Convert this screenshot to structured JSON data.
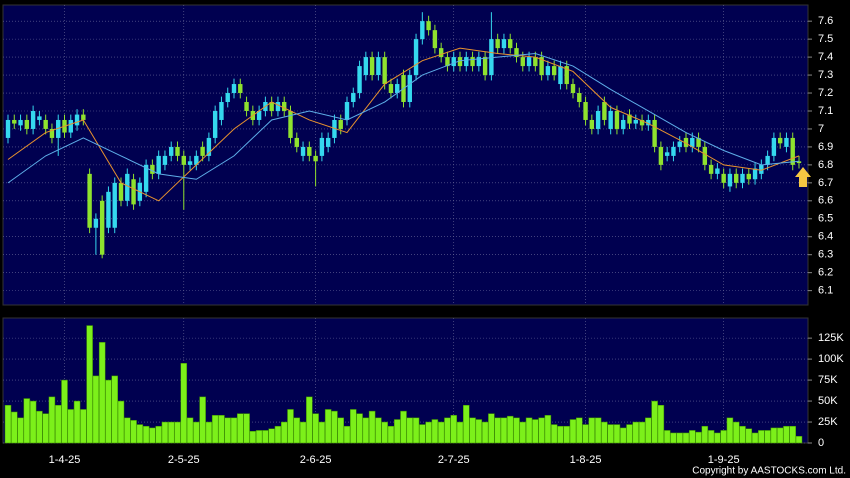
{
  "chart_data": [
    {
      "type": "candlestick",
      "categories": [
        null,
        null,
        null,
        null,
        null,
        null,
        null,
        null,
        null,
        "1-4-25",
        null,
        null,
        null,
        null,
        null,
        null,
        null,
        null,
        null,
        null,
        null,
        null,
        null,
        null,
        null,
        null,
        null,
        null,
        "2-5-25",
        null,
        null,
        null,
        null,
        null,
        null,
        null,
        null,
        null,
        null,
        null,
        null,
        null,
        null,
        null,
        null,
        null,
        null,
        null,
        null,
        "2-6-25",
        null,
        null,
        null,
        null,
        null,
        null,
        null,
        null,
        null,
        null,
        null,
        null,
        null,
        null,
        null,
        null,
        null,
        null,
        null,
        null,
        null,
        "2-7-25",
        null,
        null,
        null,
        null,
        null,
        null,
        null,
        null,
        null,
        null,
        null,
        null,
        null,
        null,
        null,
        null,
        null,
        null,
        null,
        null,
        "1-8-25",
        null,
        null,
        null,
        null,
        null,
        null,
        null,
        null,
        null,
        null,
        null,
        null,
        null,
        null,
        null,
        null,
        null,
        null,
        null,
        null,
        null,
        "1-9-25",
        null,
        null,
        null,
        null,
        null,
        null,
        null,
        null,
        null,
        null,
        null,
        null
      ],
      "open": [
        6.95,
        7.05,
        7.02,
        7.05,
        7.0,
        7.05,
        7.05,
        7.0,
        6.95,
        7.05,
        6.98,
        7.02,
        7.08,
        6.75,
        6.45,
        6.6,
        6.45,
        6.45,
        6.7,
        6.6,
        6.72,
        6.6,
        6.65,
        6.8,
        6.75,
        6.8,
        6.85,
        6.9,
        6.85,
        6.8,
        6.8,
        6.9,
        6.85,
        6.95,
        7.05,
        7.15,
        7.2,
        7.25,
        7.15,
        7.1,
        7.05,
        7.1,
        7.15,
        7.1,
        7.15,
        7.1,
        6.95,
        6.85,
        6.9,
        6.85,
        6.85,
        6.9,
        6.95,
        7.05,
        7.05,
        7.15,
        7.2,
        7.3,
        7.4,
        7.3,
        7.4,
        7.25,
        7.2,
        7.3,
        7.15,
        7.3,
        7.5,
        7.6,
        7.55,
        7.45,
        7.4,
        7.35,
        7.4,
        7.35,
        7.4,
        7.35,
        7.4,
        7.3,
        7.5,
        7.45,
        7.5,
        7.45,
        7.4,
        7.35,
        7.4,
        7.4,
        7.3,
        7.35,
        7.25,
        7.35,
        7.25,
        7.2,
        7.15,
        7.05,
        7.0,
        7.15,
        7.0,
        7.1,
        7.0,
        7.08,
        7.03,
        7.05,
        7.02,
        7.05,
        6.9,
        6.85,
        6.85,
        6.9,
        6.95,
        6.9,
        6.95,
        6.9,
        6.8,
        6.75,
        6.75,
        6.68,
        6.75,
        6.7,
        6.75,
        6.72,
        6.75,
        6.8,
        6.85,
        6.95,
        6.9,
        6.95,
        6.82
      ],
      "high": [
        7.08,
        7.08,
        7.08,
        7.08,
        7.13,
        7.1,
        7.08,
        7.03,
        7.08,
        7.08,
        7.08,
        7.11,
        7.11,
        6.78,
        6.53,
        6.63,
        6.68,
        6.73,
        6.73,
        6.78,
        6.75,
        6.73,
        6.83,
        6.83,
        6.88,
        6.88,
        6.93,
        6.93,
        6.88,
        6.85,
        6.88,
        6.93,
        6.98,
        7.13,
        7.18,
        7.23,
        7.28,
        7.28,
        7.18,
        7.13,
        7.13,
        7.18,
        7.18,
        7.18,
        7.18,
        7.13,
        6.98,
        6.93,
        6.93,
        6.88,
        6.98,
        6.98,
        7.08,
        7.08,
        7.18,
        7.23,
        7.38,
        7.43,
        7.43,
        7.43,
        7.43,
        7.28,
        7.28,
        7.33,
        7.33,
        7.53,
        7.65,
        7.63,
        7.58,
        7.48,
        7.43,
        7.43,
        7.43,
        7.43,
        7.43,
        7.43,
        7.43,
        7.65,
        7.53,
        7.53,
        7.53,
        7.48,
        7.43,
        7.43,
        7.43,
        7.43,
        7.38,
        7.38,
        7.38,
        7.38,
        7.28,
        7.23,
        7.18,
        7.08,
        7.13,
        7.18,
        7.13,
        7.13,
        7.08,
        7.11,
        7.08,
        7.08,
        7.08,
        7.08,
        6.93,
        6.9,
        6.93,
        6.96,
        6.98,
        6.98,
        6.98,
        6.93,
        6.83,
        6.81,
        6.78,
        6.78,
        6.78,
        6.78,
        6.78,
        6.81,
        6.83,
        6.88,
        6.98,
        6.98,
        6.98,
        6.98,
        6.85
      ],
      "low": [
        6.92,
        7.0,
        6.99,
        6.97,
        6.97,
        7.02,
        6.97,
        6.92,
        6.85,
        6.95,
        6.95,
        6.99,
        7.02,
        6.42,
        6.3,
        6.28,
        6.42,
        6.42,
        6.57,
        6.57,
        6.55,
        6.57,
        6.62,
        6.72,
        6.72,
        6.77,
        6.82,
        6.82,
        6.55,
        6.77,
        6.77,
        6.82,
        6.82,
        6.92,
        7.02,
        7.12,
        7.17,
        7.17,
        7.07,
        7.02,
        7.02,
        7.07,
        7.07,
        7.07,
        7.07,
        6.92,
        6.87,
        6.82,
        6.82,
        6.68,
        6.82,
        6.87,
        6.92,
        6.97,
        7.02,
        7.12,
        7.17,
        7.27,
        7.27,
        7.27,
        7.22,
        7.17,
        7.17,
        7.12,
        7.12,
        7.27,
        7.47,
        7.52,
        7.42,
        7.37,
        7.32,
        7.32,
        7.32,
        7.32,
        7.32,
        7.32,
        7.27,
        7.27,
        7.42,
        7.42,
        7.42,
        7.37,
        7.32,
        7.32,
        7.32,
        7.27,
        7.27,
        7.27,
        7.22,
        7.22,
        7.17,
        7.12,
        7.02,
        6.97,
        6.97,
        7.02,
        6.97,
        6.97,
        6.97,
        7.0,
        7.0,
        6.99,
        6.99,
        6.87,
        6.77,
        6.82,
        6.82,
        6.87,
        6.87,
        6.87,
        6.87,
        6.77,
        6.72,
        6.72,
        6.67,
        6.65,
        6.67,
        6.67,
        6.69,
        6.69,
        6.72,
        6.77,
        6.82,
        6.89,
        6.87,
        6.77,
        6.78
      ],
      "close": [
        7.05,
        7.03,
        7.05,
        7.0,
        7.1,
        7.07,
        7.0,
        6.95,
        7.05,
        6.98,
        7.05,
        7.08,
        7.05,
        6.45,
        6.5,
        6.3,
        6.65,
        6.7,
        6.6,
        6.75,
        6.58,
        6.7,
        6.8,
        6.75,
        6.85,
        6.85,
        6.9,
        6.85,
        6.8,
        6.82,
        6.85,
        6.85,
        6.95,
        7.1,
        7.15,
        7.2,
        7.25,
        7.2,
        7.1,
        7.05,
        7.1,
        7.15,
        7.1,
        7.15,
        7.1,
        6.95,
        6.9,
        6.9,
        6.85,
        6.82,
        6.95,
        6.95,
        7.05,
        7.0,
        7.15,
        7.2,
        7.35,
        7.4,
        7.3,
        7.4,
        7.25,
        7.2,
        7.25,
        7.15,
        7.3,
        7.5,
        7.6,
        7.55,
        7.45,
        7.4,
        7.35,
        7.4,
        7.35,
        7.4,
        7.35,
        7.4,
        7.3,
        7.5,
        7.45,
        7.5,
        7.45,
        7.4,
        7.35,
        7.4,
        7.35,
        7.3,
        7.35,
        7.3,
        7.35,
        7.25,
        7.2,
        7.15,
        7.05,
        7.0,
        7.1,
        7.05,
        7.1,
        7.0,
        7.05,
        7.03,
        7.05,
        7.02,
        7.05,
        6.9,
        6.8,
        6.87,
        6.9,
        6.93,
        6.9,
        6.95,
        6.9,
        6.8,
        6.75,
        6.78,
        6.7,
        6.75,
        6.7,
        6.75,
        6.72,
        6.78,
        6.8,
        6.85,
        6.95,
        6.92,
        6.95,
        6.8,
        6.81
      ],
      "up_color": "#35d8ee",
      "down_color": "#8fe22e",
      "series": [
        {
          "color": "#e8922e",
          "x": [
            0,
            6,
            12,
            18,
            24,
            30,
            36,
            42,
            48,
            54,
            60,
            66,
            72,
            78,
            84,
            90,
            96,
            102,
            108,
            114,
            120,
            126
          ],
          "values": [
            6.83,
            6.98,
            7.05,
            6.7,
            6.6,
            6.8,
            7.0,
            7.15,
            7.05,
            6.98,
            7.25,
            7.38,
            7.45,
            7.42,
            7.4,
            7.32,
            7.12,
            7.03,
            6.92,
            6.8,
            6.77,
            6.85
          ]
        },
        {
          "color": "#5eaee8",
          "x": [
            0,
            6,
            12,
            18,
            24,
            30,
            36,
            42,
            48,
            54,
            60,
            66,
            72,
            78,
            84,
            90,
            96,
            102,
            108,
            114,
            120,
            126
          ],
          "values": [
            6.7,
            6.85,
            6.95,
            6.85,
            6.75,
            6.72,
            6.85,
            7.05,
            7.1,
            7.05,
            7.15,
            7.3,
            7.38,
            7.4,
            7.42,
            7.35,
            7.22,
            7.1,
            6.98,
            6.88,
            6.8,
            6.82
          ]
        }
      ],
      "ylim": [
        6.02,
        7.69
      ],
      "yticks": [
        6.1,
        6.2,
        6.3,
        6.4,
        6.5,
        6.6,
        6.7,
        6.8,
        6.9,
        7,
        7.1,
        7.2,
        7.3,
        7.4,
        7.5,
        7.6
      ],
      "grid": true
    },
    {
      "type": "bar",
      "values": [
        45000,
        37000,
        30000,
        53000,
        50000,
        38000,
        35000,
        55000,
        45000,
        75000,
        40000,
        50000,
        40000,
        140000,
        80000,
        120000,
        75000,
        80000,
        50000,
        30000,
        27000,
        22000,
        20000,
        18000,
        20000,
        25000,
        25000,
        25000,
        95000,
        30000,
        25000,
        55000,
        25000,
        33000,
        33000,
        30000,
        30000,
        35000,
        35000,
        14000,
        15000,
        15000,
        17000,
        20000,
        25000,
        40000,
        30000,
        25000,
        55000,
        35000,
        25000,
        40000,
        38000,
        30000,
        20000,
        40000,
        35000,
        30000,
        38000,
        30000,
        25000,
        20000,
        28000,
        38000,
        30000,
        30000,
        22000,
        25000,
        28000,
        25000,
        30000,
        33000,
        25000,
        45000,
        30000,
        28000,
        25000,
        35000,
        30000,
        30000,
        32000,
        30000,
        25000,
        30000,
        28000,
        30000,
        33000,
        22000,
        20000,
        20000,
        28000,
        30000,
        22000,
        30000,
        30000,
        25000,
        22000,
        22000,
        18000,
        22000,
        25000,
        25000,
        30000,
        50000,
        45000,
        15000,
        12000,
        12000,
        12000,
        15000,
        13000,
        20000,
        15000,
        12000,
        15000,
        30000,
        25000,
        20000,
        17000,
        12000,
        15000,
        15000,
        18000,
        18000,
        20000,
        20000,
        8000
      ],
      "color": "#7cf01a",
      "ylim": [
        0,
        149000
      ],
      "yticks": [
        0,
        {
          "value": 25000,
          "label": "25K"
        },
        {
          "value": 50000,
          "label": "50K"
        },
        {
          "value": 75000,
          "label": "75K"
        },
        {
          "value": 100000,
          "label": "100K"
        },
        {
          "value": 125000,
          "label": "125K"
        }
      ],
      "grid": true
    }
  ],
  "copyright": "Copyright by AASTOCKS.com Ltd."
}
